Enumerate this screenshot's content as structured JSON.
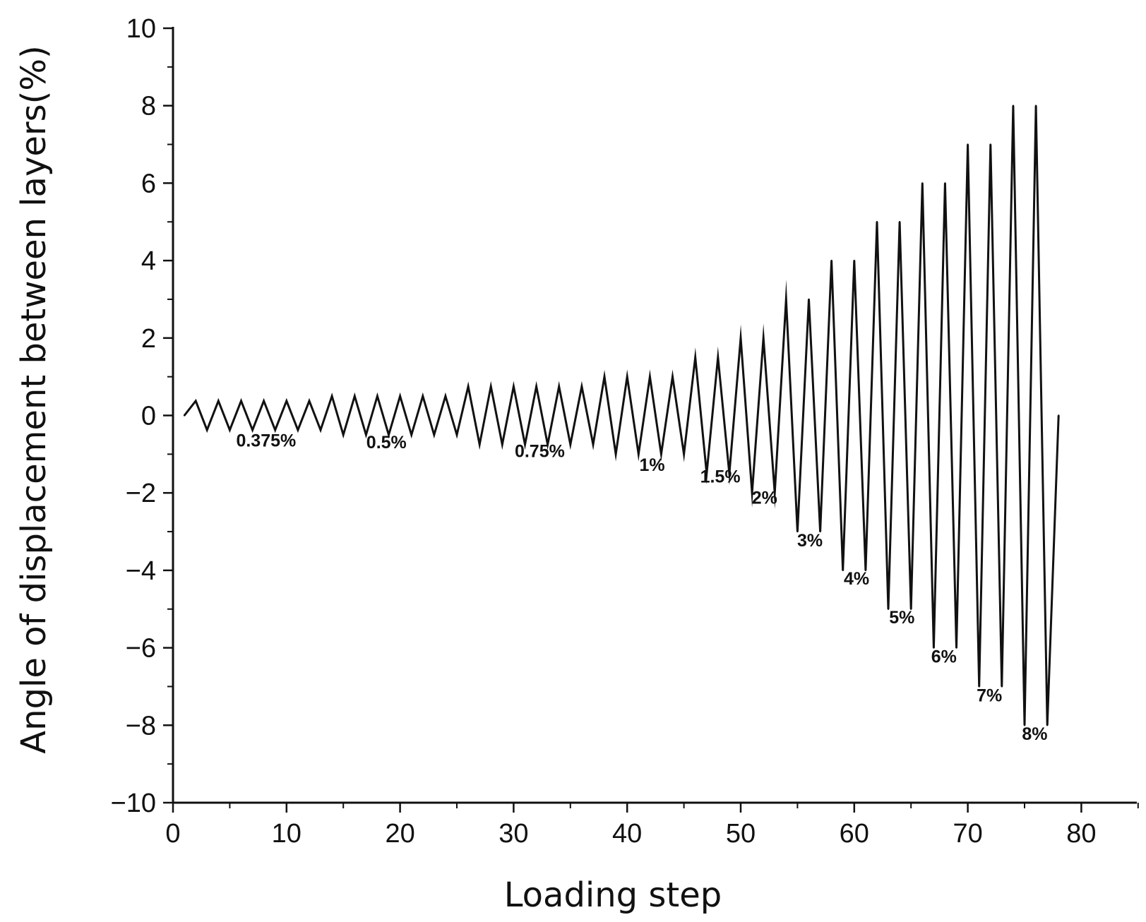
{
  "chart_data": {
    "type": "line",
    "title": "",
    "xlabel": "Loading step",
    "ylabel": "Angle of displacement between layers(%)",
    "xlim": [
      0,
      85
    ],
    "ylim": [
      -10,
      10
    ],
    "x_ticks": [
      0,
      10,
      20,
      30,
      40,
      50,
      60,
      70,
      80
    ],
    "y_ticks": [
      -10,
      -8,
      -6,
      -4,
      -2,
      0,
      2,
      4,
      6,
      8,
      10
    ],
    "y_tick_labels": [
      "−10",
      "−8",
      "−6",
      "−4",
      "−2",
      "0",
      "2",
      "4",
      "6",
      "8",
      "10"
    ],
    "grid": false,
    "line_color": "#111111",
    "series": [
      {
        "x": [
          1,
          2,
          3,
          4,
          5,
          6,
          7,
          8,
          9,
          10,
          11,
          12,
          13,
          14,
          15,
          16,
          17,
          18,
          19,
          20,
          21,
          22,
          23,
          24,
          25,
          26,
          27,
          28,
          29,
          30,
          31,
          32,
          33,
          34,
          35,
          36,
          37,
          38,
          39,
          40,
          41,
          42,
          43,
          44,
          45,
          46,
          47,
          48,
          49,
          50,
          51,
          52,
          53,
          54,
          55,
          56,
          57,
          58,
          59,
          60,
          61,
          62,
          63,
          64,
          65,
          66,
          67,
          68,
          69,
          70,
          71,
          72,
          73,
          74,
          75,
          76,
          77,
          78
        ],
        "y": [
          0,
          0.375,
          -0.375,
          0.375,
          -0.375,
          0.375,
          -0.375,
          0.375,
          -0.375,
          0.375,
          -0.375,
          0.375,
          -0.375,
          0.5,
          -0.5,
          0.5,
          -0.5,
          0.5,
          -0.5,
          0.5,
          -0.5,
          0.5,
          -0.5,
          0.5,
          -0.5,
          0.75,
          -0.75,
          0.75,
          -0.75,
          0.75,
          -0.75,
          0.75,
          -0.75,
          0.75,
          -0.75,
          0.75,
          -0.75,
          1,
          -1,
          1,
          -1,
          1,
          -1,
          1,
          -1,
          1.5,
          -1.5,
          1.5,
          -1.5,
          2,
          -2,
          2,
          -2,
          3,
          -3,
          3,
          -3,
          4,
          -4,
          4,
          -4,
          5,
          -5,
          5,
          -5,
          6,
          -6,
          6,
          -6,
          7,
          -7,
          7,
          -7,
          8,
          -8,
          8,
          -8,
          0
        ]
      }
    ],
    "annotations": [
      {
        "text": "0.375%",
        "x": 8.2,
        "y": -0.8
      },
      {
        "text": "0.5%",
        "x": 18.8,
        "y": -0.85
      },
      {
        "text": "0.75%",
        "x": 32.3,
        "y": -1.08
      },
      {
        "text": "1%",
        "x": 42.2,
        "y": -1.43
      },
      {
        "text": "1.5%",
        "x": 48.2,
        "y": -1.73
      },
      {
        "text": "2%",
        "x": 52.1,
        "y": -2.28
      },
      {
        "text": "3%",
        "x": 56.1,
        "y": -3.38
      },
      {
        "text": "4%",
        "x": 60.2,
        "y": -4.37
      },
      {
        "text": "5%",
        "x": 64.2,
        "y": -5.37
      },
      {
        "text": "6%",
        "x": 67.9,
        "y": -6.38
      },
      {
        "text": "7%",
        "x": 71.9,
        "y": -7.38
      },
      {
        "text": "8%",
        "x": 75.9,
        "y": -8.38
      }
    ]
  }
}
